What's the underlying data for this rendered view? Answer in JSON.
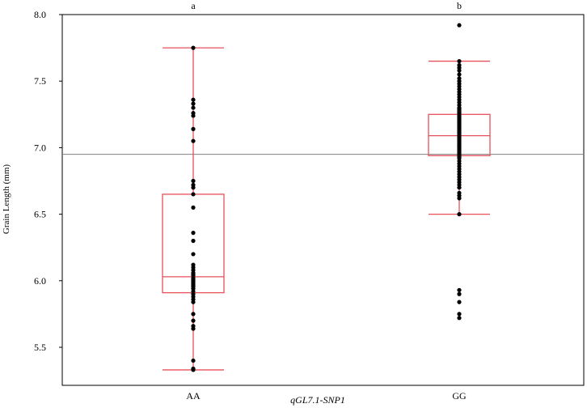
{
  "chart_data": {
    "type": "box",
    "title": "",
    "xlabel": "qGL7.1-SNP1",
    "ylabel": "Grain Length  (mm)",
    "ylim": [
      5.2,
      8.0
    ],
    "yticks": [
      "5.5",
      "6.0",
      "6.5",
      "7.0",
      "7.5",
      "8.0"
    ],
    "reference_line": 6.95,
    "grid": false,
    "colors": {
      "box": "#e8505b",
      "points": "#000000",
      "ref_line": "#808080",
      "frame": "#000000"
    },
    "groups": [
      {
        "category": "AA",
        "letter": "a",
        "whisker_low": 5.33,
        "q1": 5.91,
        "median": 6.03,
        "q3": 6.65,
        "whisker_high": 7.75,
        "points": [
          5.33,
          5.34,
          5.4,
          5.64,
          5.66,
          5.7,
          5.75,
          5.84,
          5.86,
          5.88,
          5.9,
          5.92,
          5.94,
          5.95,
          5.96,
          5.97,
          5.98,
          5.99,
          6.0,
          6.01,
          6.02,
          6.04,
          6.05,
          6.06,
          6.08,
          6.1,
          6.12,
          6.2,
          6.3,
          6.36,
          6.55,
          6.65,
          6.7,
          6.72,
          6.75,
          7.05,
          7.14,
          7.24,
          7.26,
          7.3,
          7.33,
          7.36,
          7.75
        ]
      },
      {
        "category": "GG",
        "letter": "b",
        "whisker_low": 6.5,
        "q1": 6.94,
        "median": 7.09,
        "q3": 7.25,
        "whisker_high": 7.65,
        "points": [
          5.72,
          5.75,
          5.84,
          5.9,
          5.93,
          6.5,
          6.62,
          6.64,
          6.66,
          6.7,
          6.72,
          6.74,
          6.76,
          6.78,
          6.8,
          6.82,
          6.84,
          6.86,
          6.88,
          6.9,
          6.92,
          6.93,
          6.94,
          6.95,
          6.96,
          6.97,
          6.98,
          6.99,
          7.0,
          7.01,
          7.02,
          7.03,
          7.04,
          7.05,
          7.06,
          7.07,
          7.08,
          7.09,
          7.1,
          7.11,
          7.12,
          7.13,
          7.14,
          7.15,
          7.16,
          7.17,
          7.18,
          7.19,
          7.2,
          7.21,
          7.22,
          7.23,
          7.24,
          7.25,
          7.26,
          7.27,
          7.28,
          7.29,
          7.3,
          7.32,
          7.34,
          7.36,
          7.38,
          7.4,
          7.42,
          7.44,
          7.46,
          7.48,
          7.5,
          7.52,
          7.55,
          7.58,
          7.6,
          7.62,
          7.65,
          7.92
        ]
      }
    ]
  }
}
